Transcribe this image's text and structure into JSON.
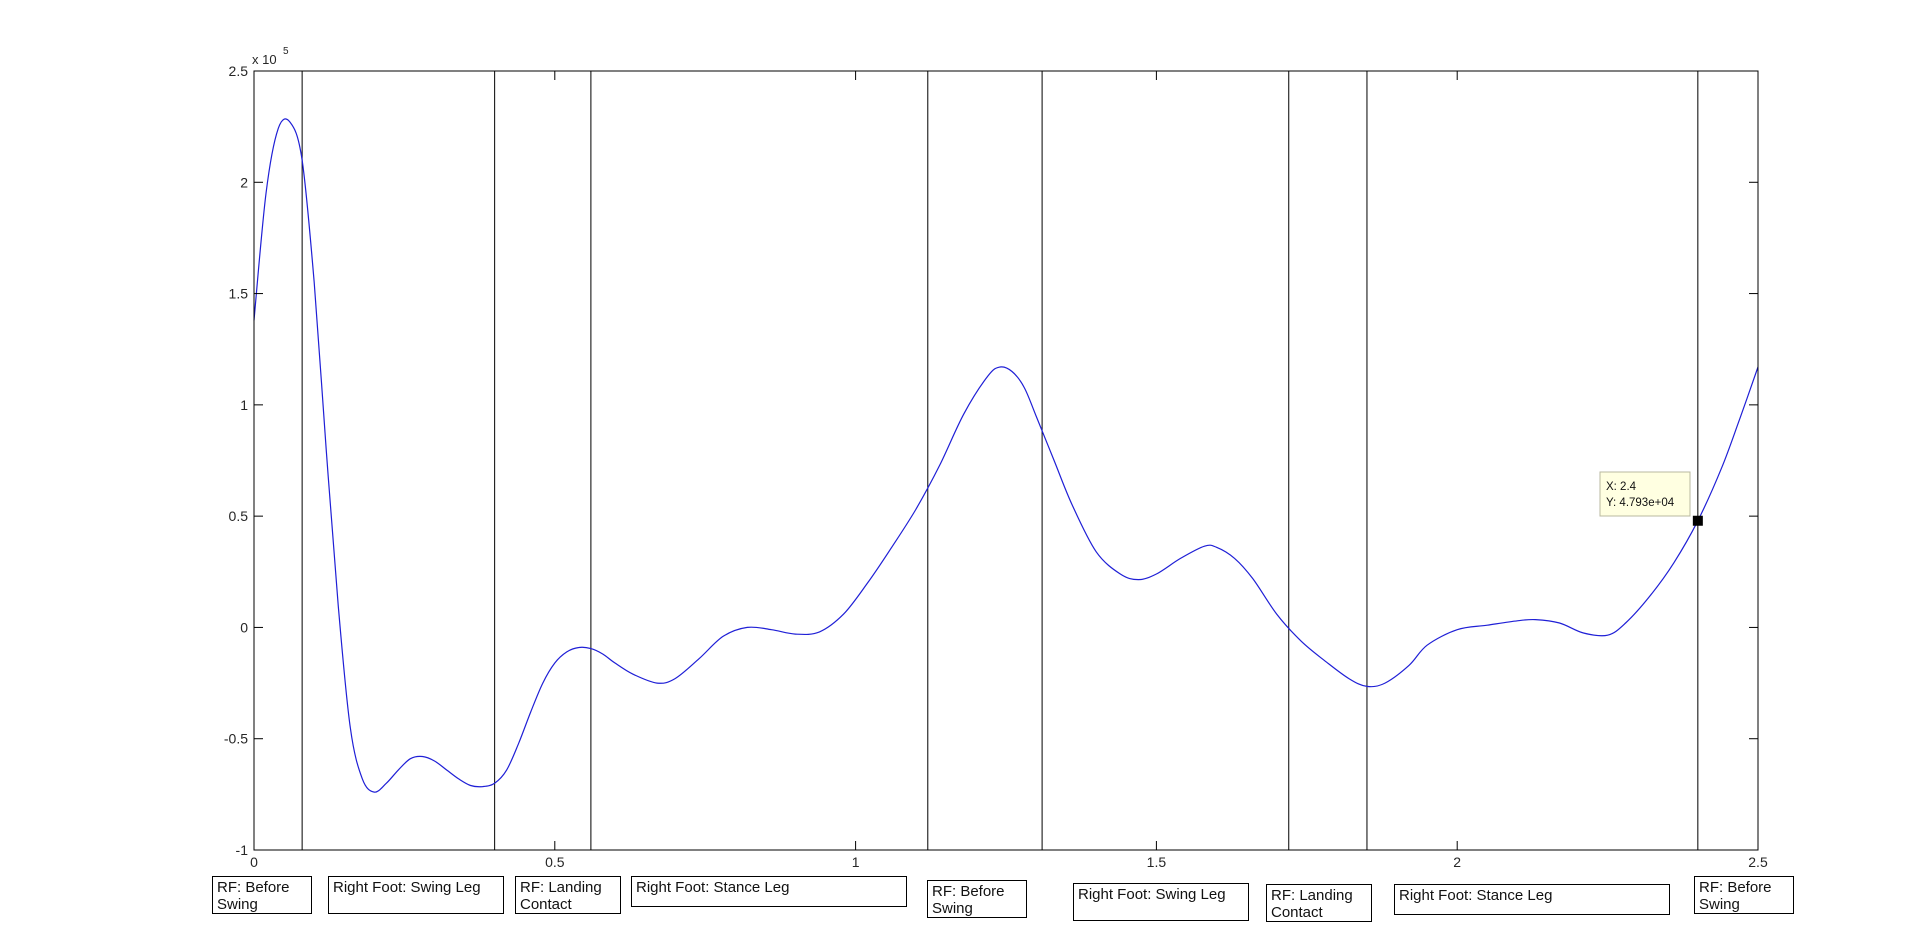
{
  "chart_data": {
    "type": "line",
    "title": "",
    "xlabel": "",
    "ylabel": "",
    "xlim": [
      0,
      2.5
    ],
    "ylim": [
      -100000,
      250000
    ],
    "x_ticks": [
      "0",
      "0.5",
      "1",
      "1.5",
      "2",
      "2.5"
    ],
    "y_ticks": [
      "-1",
      "-0.5",
      "0",
      "0.5",
      "1",
      "1.5",
      "2",
      "2.5"
    ],
    "y_exponent_label": "x 10",
    "y_exponent_power": "5",
    "grid": false,
    "line_color": "#1f1fd6",
    "series": [
      {
        "x": [
          0,
          0.02,
          0.04,
          0.06,
          0.08,
          0.1,
          0.12,
          0.14,
          0.16,
          0.18,
          0.2,
          0.22,
          0.24,
          0.26,
          0.28,
          0.3,
          0.32,
          0.34,
          0.36,
          0.38,
          0.4,
          0.42,
          0.44,
          0.46,
          0.48,
          0.5,
          0.52,
          0.54,
          0.56,
          0.58,
          0.6,
          0.63,
          0.67,
          0.7,
          0.74,
          0.78,
          0.82,
          0.86,
          0.9,
          0.94,
          0.98,
          1.02,
          1.06,
          1.1,
          1.14,
          1.18,
          1.22,
          1.24,
          1.26,
          1.28,
          1.3,
          1.33,
          1.36,
          1.4,
          1.44,
          1.47,
          1.5,
          1.54,
          1.58,
          1.6,
          1.63,
          1.66,
          1.7,
          1.74,
          1.78,
          1.82,
          1.85,
          1.88,
          1.92,
          1.95,
          2.0,
          2.05,
          2.1,
          2.13,
          2.17,
          2.21,
          2.25,
          2.28,
          2.32,
          2.36,
          2.4,
          2.44,
          2.47,
          2.5
        ],
        "y": [
          138000,
          195000,
          224000,
          227000,
          210000,
          155000,
          80000,
          10000,
          -45000,
          -68000,
          -74000,
          -70000,
          -64000,
          -59000,
          -58000,
          -60000,
          -64000,
          -68000,
          -71000,
          -71500,
          -70000,
          -64000,
          -52000,
          -38000,
          -25000,
          -16000,
          -11000,
          -9000,
          -9500,
          -12000,
          -16000,
          -21000,
          -25000,
          -23000,
          -14000,
          -4000,
          0,
          -1000,
          -3000,
          -2000,
          6000,
          20000,
          36000,
          53000,
          73000,
          96000,
          113000,
          117000,
          115000,
          108000,
          95000,
          75000,
          55000,
          34000,
          24000,
          21500,
          24000,
          31000,
          36500,
          36000,
          31000,
          22000,
          6000,
          -6000,
          -15000,
          -23000,
          -26500,
          -25000,
          -17000,
          -8000,
          -1000,
          1000,
          3000,
          3500,
          2000,
          -2500,
          -3500,
          2000,
          14000,
          29000,
          47930,
          72000,
          94000,
          117000
        ]
      }
    ],
    "vertical_lines_x": [
      0.08,
      0.4,
      0.56,
      1.12,
      1.31,
      1.72,
      1.85,
      2.4
    ],
    "datatip": {
      "x_text": "X: 2.4",
      "y_text": "Y: 4.793e+04",
      "x": 2.4,
      "y": 47930
    },
    "phase_labels": [
      "RF: Before\nSwing",
      "Right Foot: Swing Leg",
      "RF: Landing\nContact",
      "Right Foot: Stance Leg",
      "RF: Before\nSwing",
      "Right Foot: Swing Leg",
      "RF: Landing\nContact",
      "Right Foot: Stance Leg",
      "RF: Before\nSwing"
    ]
  }
}
